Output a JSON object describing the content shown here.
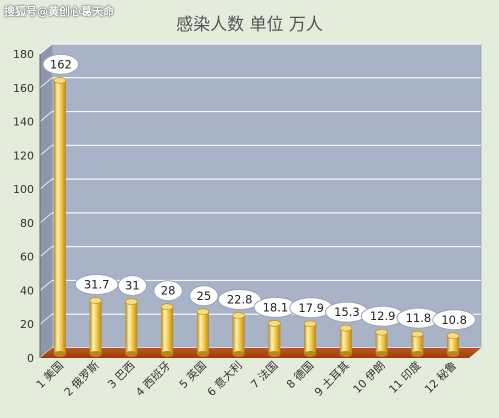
{
  "watermark": "搜狐号@黄创心葛天命",
  "chart_data": {
    "type": "bar",
    "title": "感染人数 单位 万人",
    "categories": [
      "1 美国",
      "2 俄罗斯",
      "3 巴西",
      "4 西班牙",
      "5 英国",
      "6 意大利",
      "7 法国",
      "8 德国",
      "9 土耳其",
      "10 伊朗",
      "11 印度",
      "12 秘鲁"
    ],
    "values": [
      162,
      31.7,
      31,
      28,
      25,
      22.8,
      18.1,
      17.9,
      15.3,
      12.9,
      11.8,
      10.8
    ],
    "value_labels": [
      "162",
      "31.7",
      "31",
      "28",
      "25",
      "22.8",
      "18.1",
      "17.9",
      "15.3",
      "12.9",
      "11.8",
      "10.8"
    ],
    "ylim": [
      0,
      180
    ],
    "yticks": [
      0,
      20,
      40,
      60,
      80,
      100,
      120,
      140,
      160,
      180
    ],
    "grid": true,
    "colors": {
      "plot_bg": "#a9b3c7",
      "wall_side": "#8d97ac",
      "floor": "#9b3d0c",
      "bar": "#f2c84b",
      "bar_dark": "#b8861a",
      "bar_light": "#fff3b0",
      "label_bg": "#ffffff",
      "label_border": "#9aa3b5"
    }
  }
}
